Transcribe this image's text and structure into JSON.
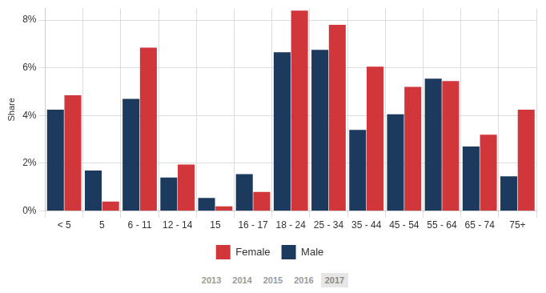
{
  "chart_data": {
    "type": "bar",
    "y_label": "Share",
    "categories": [
      "< 5",
      "5",
      "6 - 11",
      "12 - 14",
      "15",
      "16 - 17",
      "18 - 24",
      "25 - 34",
      "35 - 44",
      "45 - 54",
      "55 - 64",
      "65 - 74",
      "75+"
    ],
    "series": [
      {
        "name": "Male",
        "color": "#1c3a5e",
        "values": [
          4.25,
          1.7,
          4.7,
          1.4,
          0.55,
          1.55,
          6.65,
          6.75,
          3.4,
          4.05,
          5.55,
          2.7,
          1.45
        ]
      },
      {
        "name": "Female",
        "color": "#d1363a",
        "values": [
          4.85,
          0.4,
          6.85,
          1.95,
          0.2,
          0.8,
          8.4,
          7.8,
          6.05,
          5.2,
          5.45,
          3.2,
          4.25
        ]
      }
    ],
    "ylim": [
      0,
      8.5
    ],
    "yticks": [
      {
        "value": 0,
        "label": "0%"
      },
      {
        "value": 2,
        "label": "2%"
      },
      {
        "value": 4,
        "label": "4%"
      },
      {
        "value": 6,
        "label": "6%"
      },
      {
        "value": 8,
        "label": "8%"
      }
    ],
    "grid": true,
    "legend": "bottom",
    "annotations": [
      "2013",
      "2014",
      "2015",
      "2016",
      "2017"
    ]
  }
}
